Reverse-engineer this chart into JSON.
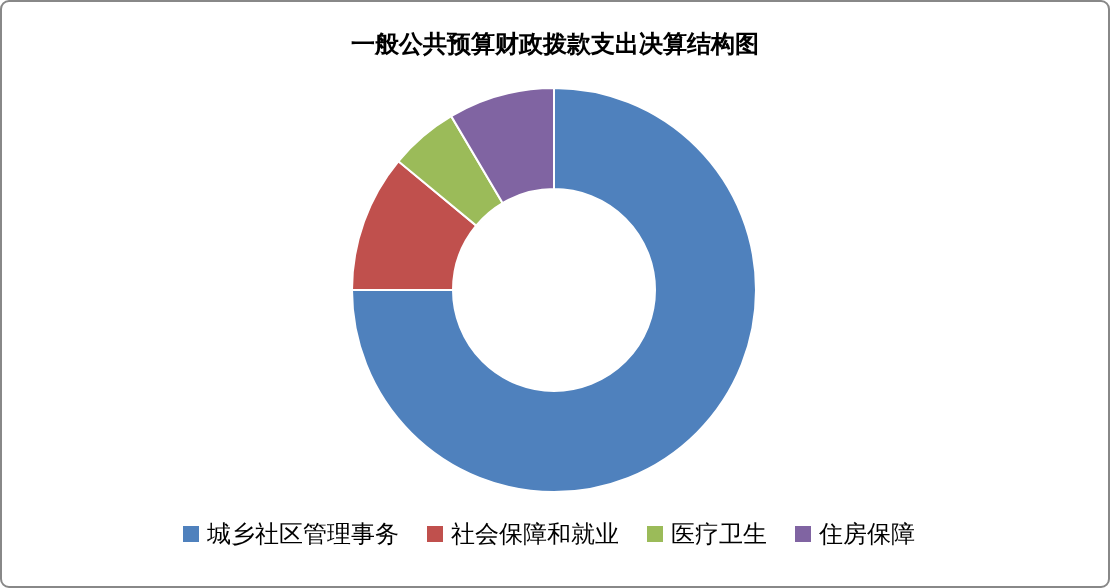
{
  "chart_data": {
    "type": "donut",
    "title": "一般公共预算财政拨款支出决算结构图",
    "categories": [
      "城乡社区管理事务",
      "社会保障和就业",
      "医疗卫生",
      "住房保障"
    ],
    "values": [
      75,
      11,
      5.5,
      8.5
    ],
    "colors": [
      "#4f81bd",
      "#c0504d",
      "#9bbb59",
      "#8064a2"
    ],
    "legend": "bottom"
  }
}
